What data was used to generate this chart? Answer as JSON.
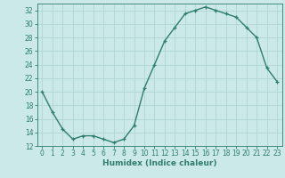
{
  "x": [
    0,
    1,
    2,
    3,
    4,
    5,
    6,
    7,
    8,
    9,
    10,
    11,
    12,
    13,
    14,
    15,
    16,
    17,
    18,
    19,
    20,
    21,
    22,
    23
  ],
  "y": [
    20,
    17,
    14.5,
    13,
    13.5,
    13.5,
    13,
    12.5,
    13,
    15,
    20.5,
    24,
    27.5,
    29.5,
    31.5,
    32,
    32.5,
    32,
    31.5,
    31,
    29.5,
    28,
    23.5,
    21.5
  ],
  "line_color": "#2e7d6e",
  "marker": "+",
  "marker_size": 3.5,
  "bg_color": "#cce9e9",
  "grid_color": "#b0d5d5",
  "xlabel": "Humidex (Indice chaleur)",
  "ylim": [
    12,
    33
  ],
  "xlim": [
    -0.5,
    23.5
  ],
  "yticks": [
    12,
    14,
    16,
    18,
    20,
    22,
    24,
    26,
    28,
    30,
    32
  ],
  "xticks": [
    0,
    1,
    2,
    3,
    4,
    5,
    6,
    7,
    8,
    9,
    10,
    11,
    12,
    13,
    14,
    15,
    16,
    17,
    18,
    19,
    20,
    21,
    22,
    23
  ],
  "xlabel_fontsize": 6.5,
  "tick_fontsize": 5.5,
  "line_width": 1.0,
  "marker_edge_width": 0.9
}
